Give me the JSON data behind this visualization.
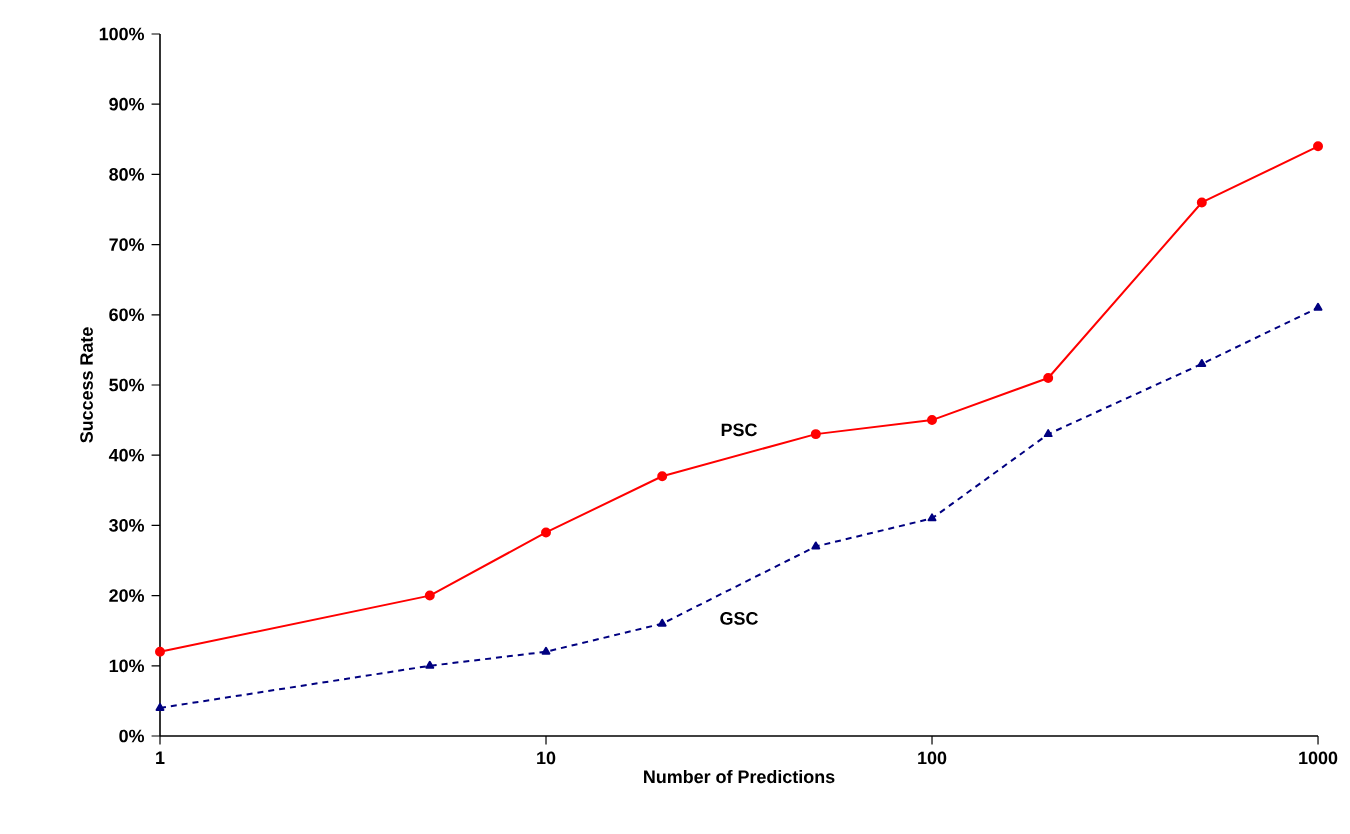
{
  "chart_data": {
    "type": "line",
    "xlabel": "Number of Predictions",
    "ylabel": "Success Rate",
    "log": "x",
    "x": [
      1,
      5,
      10,
      20,
      50,
      100,
      200,
      500,
      1000
    ],
    "series": [
      {
        "name": "PSC",
        "color": "#ff0000",
        "marker": "circle",
        "line_style": "solid",
        "values": [
          12,
          20,
          29,
          37,
          43,
          45,
          51,
          76,
          84
        ]
      },
      {
        "name": "GSC",
        "color": "#000080",
        "marker": "triangle",
        "line_style": "dashed",
        "values": [
          4,
          10,
          12,
          16,
          27,
          31,
          43,
          53,
          61
        ]
      }
    ],
    "xlim": [
      1,
      1000
    ],
    "xticks": [
      1,
      10,
      100,
      1000
    ],
    "ylim": [
      0,
      100
    ],
    "yticks": [
      {
        "value": 0,
        "label": "0%"
      },
      {
        "value": 10,
        "label": "10%"
      },
      {
        "value": 20,
        "label": "20%"
      },
      {
        "value": 30,
        "label": "30%"
      },
      {
        "value": 40,
        "label": "40%"
      },
      {
        "value": 50,
        "label": "50%"
      },
      {
        "value": 60,
        "label": "60%"
      },
      {
        "value": 70,
        "label": "70%"
      },
      {
        "value": 80,
        "label": "80%"
      },
      {
        "value": 90,
        "label": "90%"
      },
      {
        "value": 100,
        "label": "100%"
      }
    ],
    "grid": false
  }
}
